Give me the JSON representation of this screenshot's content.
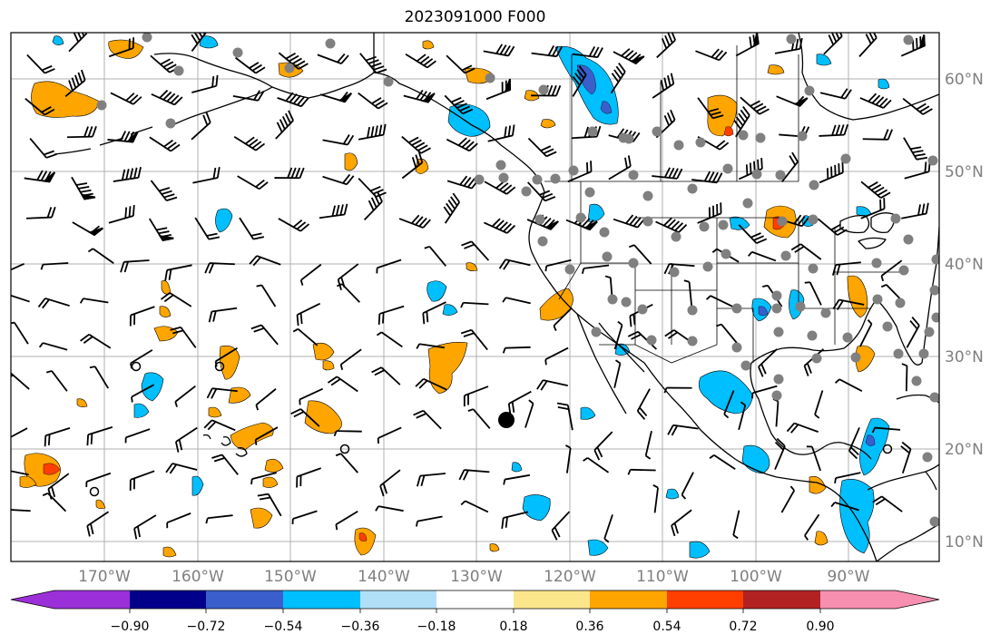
{
  "title": "2023091000 F000",
  "lon_labels": [
    "170°W",
    "160°W",
    "150°W",
    "140°W",
    "130°W",
    "120°W",
    "110°W",
    "100°W",
    "90°W"
  ],
  "lat_labels": [
    "60°N",
    "50°N",
    "40°N",
    "30°N",
    "20°N",
    "10°N"
  ],
  "colorbar": {
    "colors": [
      "#9b30d9",
      "#00008b",
      "#3a5fcd",
      "#00bfff",
      "#b0e0f8",
      "#ffffff",
      "#fce68c",
      "#ffa500",
      "#ff3f00",
      "#b22222",
      "#f78fb0"
    ],
    "tick_labels": [
      "−0.90",
      "−0.72",
      "−0.54",
      "−0.36",
      "−0.18",
      "0.18",
      "0.36",
      "0.54",
      "0.72",
      "0.90"
    ]
  }
}
